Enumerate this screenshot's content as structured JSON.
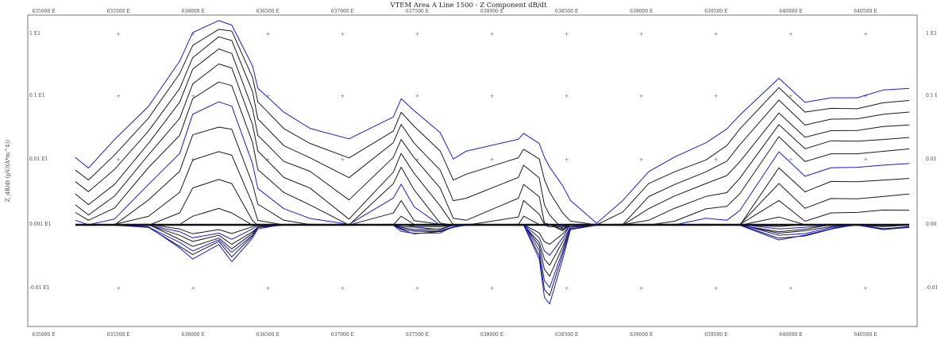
{
  "chart_data": {
    "type": "line",
    "title": "VTEM Area A Line 1500 - Z Component dB/dt",
    "ylabel": "Z_dB/dt (pV/(A*m^4))",
    "y_scale": "symmetric-log",
    "ylim": [
      -0.1,
      10
    ],
    "xlim": [
      4000,
      7200
    ],
    "grid": false,
    "x_ticks_bottom": [
      "635000 E",
      "635500 E",
      "636000 E",
      "636500 E",
      "637000 E",
      "637500 E",
      "638000 E",
      "638500 E",
      "639000 E",
      "639500 E",
      "640000 E",
      "640500 E"
    ],
    "x_ticks_top": [
      "635000 E",
      "635500 E",
      "636000 E",
      "636500 E",
      "637000 E",
      "637500 E",
      "638000 E",
      "638500 E",
      "639000 E",
      "639500 E",
      "640000 E",
      "640500 E"
    ],
    "y_ticks": [
      "1 E1",
      "0.1 E1",
      "0.01 E1",
      "0.001 E1",
      "-0.01 E1"
    ],
    "colors": {
      "standard": "#1a1a1a",
      "highlight": "#1a1adc",
      "frame": "#555555"
    },
    "x": [
      4000,
      4050,
      4150,
      4280,
      4400,
      4450,
      4550,
      4600,
      4680,
      4700,
      4800,
      4900,
      5050,
      5220,
      5250,
      5300,
      5400,
      5450,
      5500,
      5700,
      5720,
      5780,
      5800,
      5820,
      5870,
      5900,
      6000,
      6100,
      6200,
      6300,
      6420,
      6500,
      6550,
      6700,
      6800,
      6900,
      7000,
      7100,
      7200
    ],
    "series": [
      {
        "values": [
          0.33,
          0.28,
          0.42,
          0.58,
          0.8,
          0.94,
          1,
          0.98,
          0.78,
          0.67,
          0.55,
          0.47,
          0.42,
          0.53,
          0.62,
          0.56,
          0.45,
          0.32,
          0.36,
          0.42,
          0.45,
          0.4,
          0.33,
          0.28,
          0.19,
          0.12,
          0.01,
          0.12,
          0.26,
          0.33,
          0.4,
          0.47,
          0.54,
          0.72,
          0.6,
          0.62,
          0.62,
          0.66,
          0.67
        ],
        "highlight": true
      },
      {
        "values": [
          0.27,
          0.22,
          0.34,
          0.52,
          0.74,
          0.88,
          0.96,
          0.95,
          0.72,
          0.6,
          0.47,
          0.4,
          0.33,
          0.46,
          0.55,
          0.48,
          0.36,
          0.22,
          0.25,
          0.33,
          0.37,
          0.32,
          0.22,
          0.16,
          0.06,
          0.02,
          0.0,
          0.06,
          0.2,
          0.26,
          0.32,
          0.39,
          0.47,
          0.67,
          0.55,
          0.57,
          0.57,
          0.6,
          0.61
        ],
        "highlight": false
      },
      {
        "values": [
          0.21,
          0.16,
          0.27,
          0.46,
          0.67,
          0.82,
          0.92,
          0.9,
          0.65,
          0.52,
          0.39,
          0.33,
          0.23,
          0.4,
          0.49,
          0.4,
          0.27,
          0.12,
          0.13,
          0.23,
          0.29,
          0.23,
          0.1,
          0.05,
          -0.02,
          0.0,
          0.0,
          0.0,
          0.14,
          0.2,
          0.26,
          0.31,
          0.39,
          0.61,
          0.49,
          0.52,
          0.52,
          0.54,
          0.55
        ],
        "highlight": false
      },
      {
        "values": [
          0.15,
          0.1,
          0.2,
          0.4,
          0.6,
          0.76,
          0.86,
          0.84,
          0.57,
          0.44,
          0.31,
          0.26,
          0.12,
          0.33,
          0.42,
          0.33,
          0.18,
          0.03,
          0.02,
          0.13,
          0.2,
          0.14,
          0.01,
          0.0,
          -0.03,
          0.0,
          0.0,
          0.0,
          0.08,
          0.14,
          0.2,
          0.24,
          0.31,
          0.55,
          0.43,
          0.46,
          0.46,
          0.48,
          0.49
        ],
        "highlight": false
      },
      {
        "values": [
          0.1,
          0.05,
          0.14,
          0.34,
          0.52,
          0.69,
          0.79,
          0.77,
          0.49,
          0.36,
          0.23,
          0.18,
          0.03,
          0.26,
          0.35,
          0.25,
          0.09,
          0.0,
          0.0,
          0.04,
          0.12,
          0.05,
          0.0,
          0.0,
          -0.02,
          0.0,
          0.0,
          0.0,
          0.02,
          0.08,
          0.14,
          0.16,
          0.23,
          0.49,
          0.37,
          0.41,
          0.41,
          0.42,
          0.43
        ],
        "highlight": false
      },
      {
        "values": [
          0.06,
          0.02,
          0.08,
          0.28,
          0.44,
          0.62,
          0.7,
          0.68,
          0.4,
          0.27,
          0.16,
          0.1,
          0.0,
          0.2,
          0.28,
          0.17,
          0.01,
          0.0,
          0.0,
          0.0,
          0.04,
          0.0,
          0.0,
          0.0,
          -0.01,
          0.0,
          0.0,
          0.0,
          0.0,
          0.02,
          0.08,
          0.09,
          0.15,
          0.43,
          0.31,
          0.35,
          0.35,
          0.36,
          0.37
        ],
        "highlight": false
      },
      {
        "values": [
          0.02,
          0.0,
          0.03,
          0.2,
          0.35,
          0.54,
          0.6,
          0.58,
          0.3,
          0.18,
          0.08,
          0.03,
          0.0,
          0.13,
          0.2,
          0.09,
          0.0,
          0.0,
          0.0,
          0.0,
          0.0,
          0.0,
          0.0,
          -0.01,
          -0.01,
          0.0,
          0.0,
          0.0,
          0.0,
          0.0,
          0.03,
          0.02,
          0.07,
          0.36,
          0.24,
          0.28,
          0.28,
          0.29,
          0.3
        ],
        "highlight": true
      },
      {
        "values": [
          0.0,
          0.0,
          0.0,
          0.12,
          0.26,
          0.44,
          0.48,
          0.47,
          0.2,
          0.1,
          0.02,
          0.0,
          0.0,
          0.06,
          0.12,
          0.02,
          0.0,
          0.0,
          0.0,
          0.0,
          0.0,
          0.0,
          0.0,
          0.0,
          0.0,
          0.0,
          0.0,
          0.0,
          0.0,
          0.0,
          0.0,
          0.0,
          0.0,
          0.28,
          0.16,
          0.21,
          0.21,
          0.22,
          0.23
        ],
        "highlight": false
      },
      {
        "values": [
          0.0,
          0.0,
          0.0,
          0.04,
          0.16,
          0.32,
          0.36,
          0.34,
          0.1,
          0.02,
          0.0,
          0.0,
          0.0,
          0.0,
          0.04,
          0.0,
          0.0,
          0.0,
          0.0,
          0.0,
          0.0,
          0.0,
          0.0,
          0.0,
          0.0,
          0.0,
          0.0,
          0.0,
          0.0,
          0.0,
          0.0,
          0.0,
          0.0,
          0.2,
          0.08,
          0.13,
          0.13,
          0.14,
          0.15
        ],
        "highlight": false
      },
      {
        "values": [
          0.0,
          0.0,
          0.0,
          0.0,
          0.06,
          0.18,
          0.22,
          0.2,
          0.02,
          0.0,
          0.0,
          0.0,
          0.0,
          0.0,
          0.0,
          0.0,
          0.0,
          0.0,
          0.0,
          0.0,
          0.0,
          0.0,
          0.0,
          0.0,
          0.0,
          0.0,
          0.0,
          0.0,
          0.0,
          0.0,
          0.0,
          0.0,
          0.0,
          0.12,
          0.02,
          0.06,
          0.06,
          0.07,
          0.07
        ],
        "highlight": false
      },
      {
        "values": [
          0.0,
          0.0,
          0.0,
          0.0,
          0.0,
          0.04,
          0.08,
          0.06,
          0.0,
          0.0,
          0.0,
          0.0,
          0.0,
          0.0,
          0.0,
          0.0,
          0.0,
          0.0,
          0.0,
          0.0,
          0.0,
          0.0,
          0.0,
          0.0,
          0.0,
          0.0,
          0.0,
          0.0,
          0.0,
          0.0,
          0.0,
          0.0,
          0.0,
          0.04,
          0.0,
          0.0,
          0.0,
          0.0,
          0.0
        ],
        "highlight": false
      },
      {
        "values": [
          0.0,
          0.0,
          0.0,
          0.0,
          -0.02,
          -0.04,
          -0.02,
          -0.04,
          -0.01,
          0.0,
          0.0,
          0.0,
          0.0,
          0.0,
          0.0,
          -0.01,
          -0.01,
          0.0,
          0.0,
          0.0,
          0.0,
          -0.04,
          -0.08,
          -0.09,
          -0.04,
          0.0,
          0.0,
          0.0,
          0.0,
          0.0,
          0.0,
          0.0,
          0.0,
          -0.01,
          0.0,
          0.0,
          0.0,
          0.0,
          0.0
        ],
        "highlight": false
      },
      {
        "values": [
          0.0,
          0.0,
          0.0,
          0.0,
          -0.03,
          -0.06,
          -0.04,
          -0.07,
          -0.02,
          0.0,
          0.0,
          0.0,
          0.0,
          0.0,
          -0.01,
          -0.01,
          -0.02,
          0.0,
          0.0,
          0.0,
          0.0,
          -0.06,
          -0.12,
          -0.14,
          -0.06,
          0.0,
          0.0,
          0.0,
          0.0,
          0.0,
          0.0,
          0.0,
          0.0,
          -0.02,
          -0.01,
          0.0,
          0.0,
          -0.01,
          0.0
        ],
        "highlight": true
      },
      {
        "values": [
          0.0,
          0.0,
          0.0,
          0.0,
          -0.05,
          -0.08,
          -0.05,
          -0.09,
          -0.03,
          -0.01,
          0.0,
          0.0,
          0.0,
          0.0,
          -0.01,
          -0.02,
          -0.02,
          0.0,
          0.0,
          0.0,
          0.0,
          -0.08,
          -0.16,
          -0.19,
          -0.08,
          -0.01,
          0.0,
          0.0,
          0.0,
          0.0,
          0.0,
          0.0,
          0.0,
          -0.03,
          -0.02,
          0.0,
          0.0,
          -0.01,
          0.0
        ],
        "highlight": false
      },
      {
        "values": [
          0.0,
          0.0,
          0.0,
          0.0,
          -0.07,
          -0.1,
          -0.06,
          -0.11,
          -0.04,
          -0.01,
          0.0,
          0.0,
          0.0,
          0.0,
          -0.02,
          -0.03,
          -0.03,
          -0.01,
          0.0,
          0.0,
          0.0,
          -0.1,
          -0.21,
          -0.24,
          -0.1,
          -0.01,
          0.0,
          0.0,
          0.0,
          0.0,
          0.0,
          0.0,
          0.0,
          -0.04,
          -0.03,
          -0.01,
          0.0,
          -0.02,
          -0.01
        ],
        "highlight": false
      },
      {
        "values": [
          0.0,
          0.0,
          0.0,
          -0.01,
          -0.08,
          -0.12,
          -0.07,
          -0.13,
          -0.05,
          -0.01,
          0.0,
          0.0,
          0.0,
          0.0,
          -0.02,
          -0.03,
          -0.03,
          -0.01,
          0.0,
          0.0,
          0.0,
          -0.12,
          -0.26,
          -0.29,
          -0.12,
          -0.01,
          0.0,
          0.0,
          0.0,
          0.0,
          0.0,
          0.0,
          0.0,
          -0.05,
          -0.04,
          -0.01,
          0.0,
          -0.02,
          -0.01
        ],
        "highlight": true
      },
      {
        "values": [
          0.0,
          0.0,
          0.0,
          -0.01,
          -0.1,
          -0.14,
          -0.08,
          -0.15,
          -0.05,
          -0.01,
          0.0,
          0.0,
          0.0,
          0.0,
          -0.02,
          -0.04,
          -0.03,
          -0.01,
          0.0,
          0.0,
          0.0,
          -0.14,
          -0.3,
          -0.33,
          -0.14,
          -0.02,
          0.0,
          0.0,
          0.0,
          0.0,
          0.0,
          0.0,
          0.0,
          -0.06,
          -0.05,
          -0.02,
          0.0,
          -0.02,
          -0.01
        ],
        "highlight": false
      },
      {
        "values": [
          0.0,
          0.0,
          0.0,
          -0.01,
          -0.11,
          -0.16,
          -0.09,
          -0.17,
          -0.06,
          -0.02,
          0.0,
          0.0,
          0.0,
          0.0,
          -0.03,
          -0.04,
          -0.04,
          -0.01,
          0.0,
          0.0,
          0.0,
          -0.16,
          -0.34,
          -0.37,
          -0.16,
          -0.02,
          0.0,
          0.0,
          0.0,
          0.0,
          0.0,
          0.0,
          0.0,
          -0.07,
          -0.05,
          -0.02,
          0.0,
          -0.02,
          -0.01
        ],
        "highlight": true
      }
    ]
  }
}
